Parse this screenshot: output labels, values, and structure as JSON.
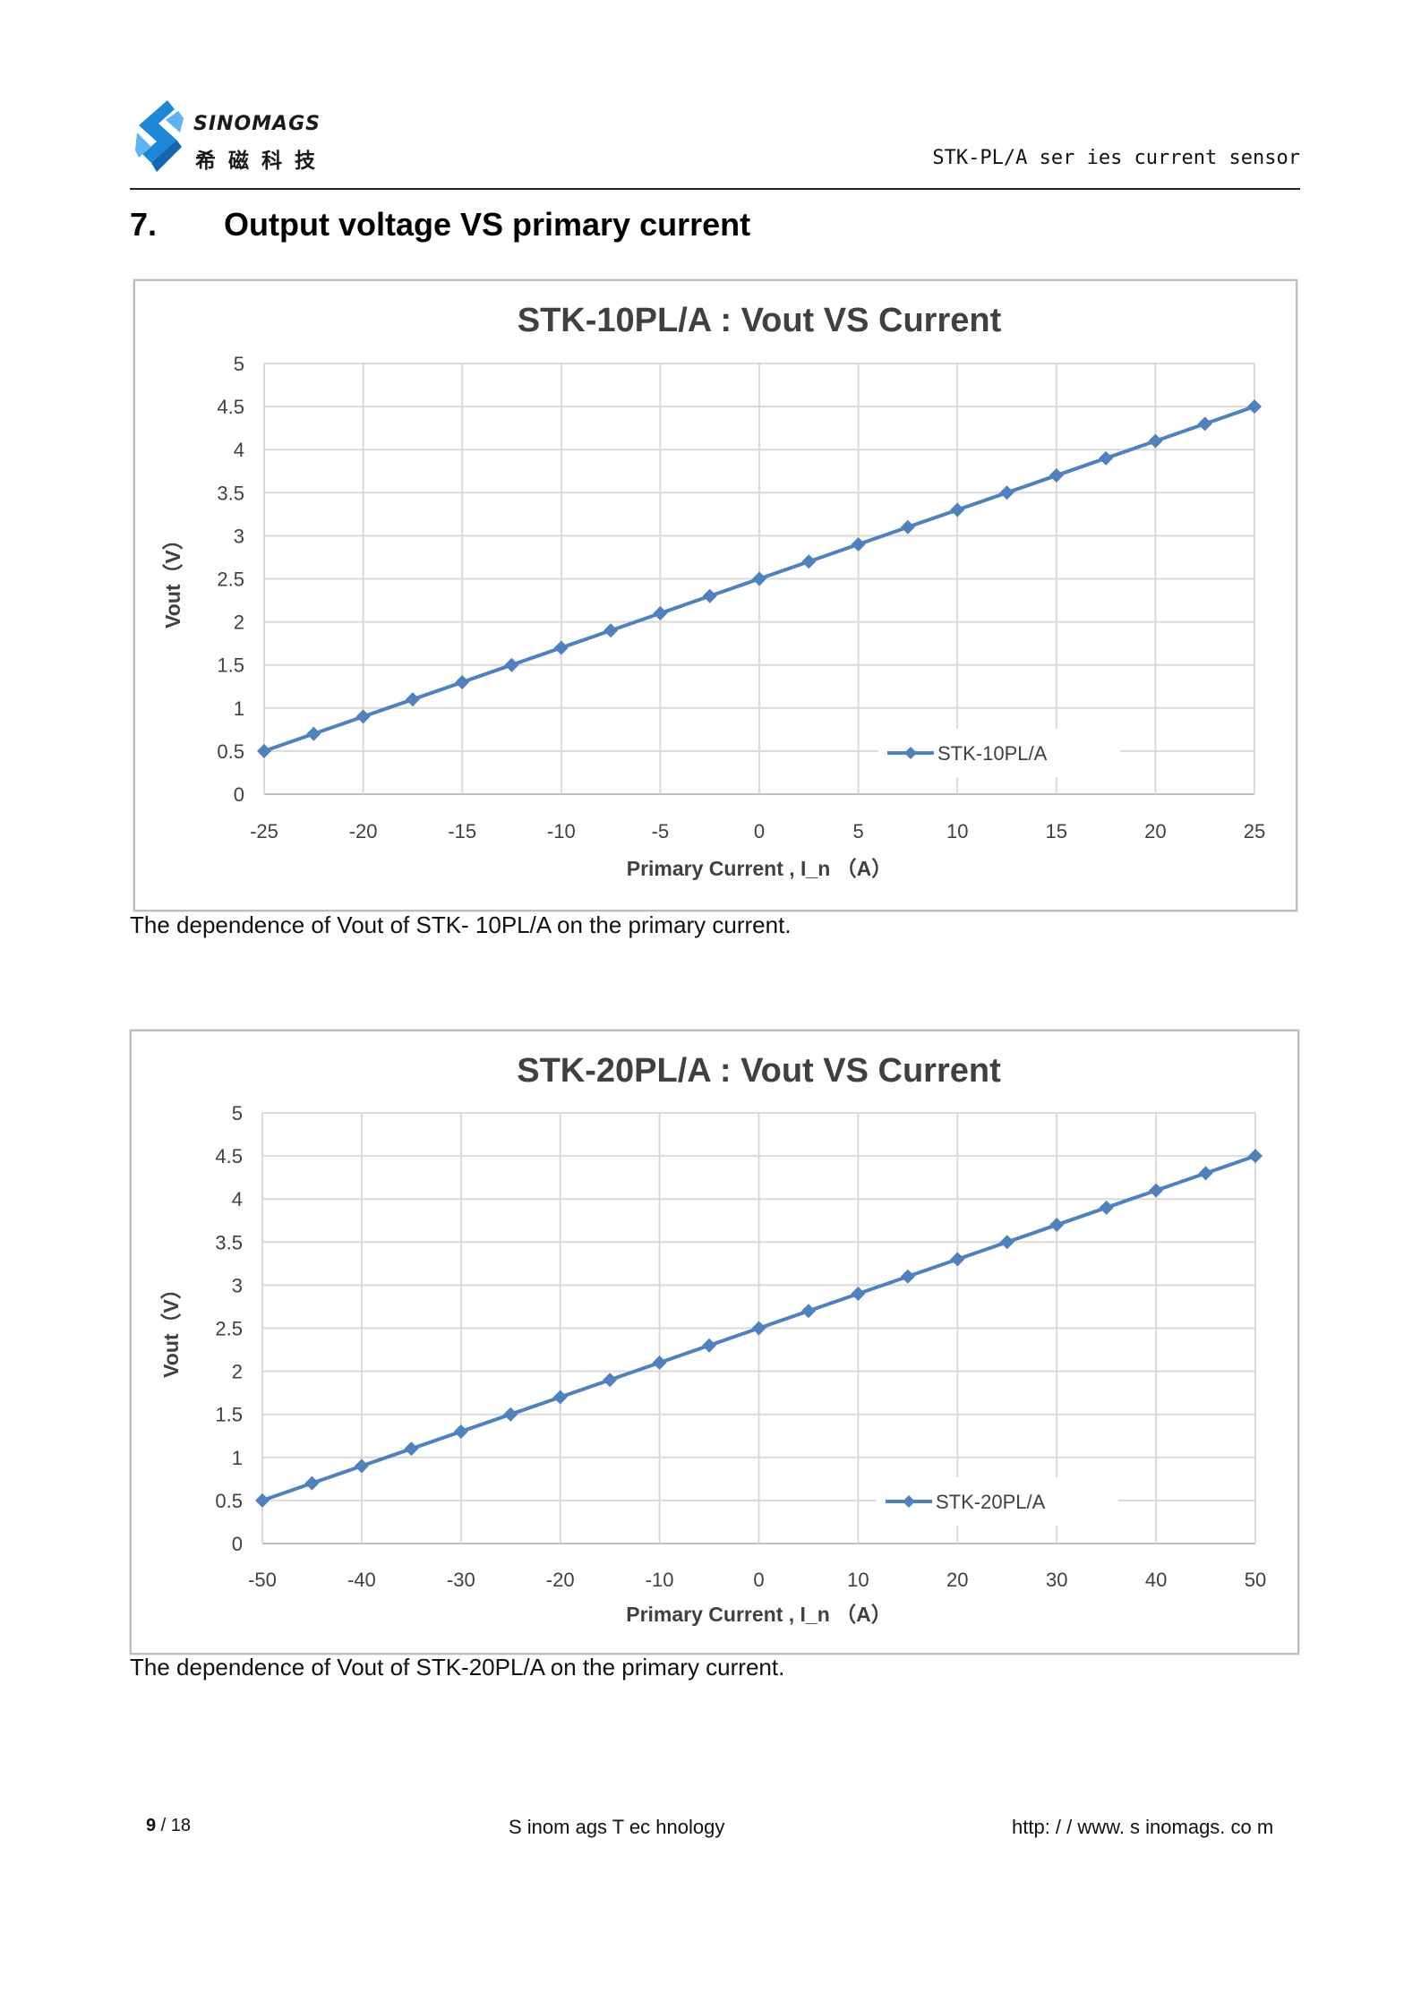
{
  "header": {
    "logo_en": "SINOMAGS",
    "logo_cn": "希磁科技",
    "series_text": "STK-PL/A ser ies current sensor"
  },
  "section": {
    "number": "7.",
    "title": "Output voltage VS primary current"
  },
  "colors": {
    "series": "#4f81bd",
    "grid": "#d9d9d9",
    "axis": "#bfbfbf",
    "logo_blue": "#1e88d8"
  },
  "charts": [
    {
      "type": "line",
      "title": "STK-10PL/A : Vout VS Current",
      "xlabel": "Primary Current , I_n （A）",
      "ylabel": "Vout（V）",
      "xlim": [
        -25,
        25
      ],
      "ylim": [
        0,
        5
      ],
      "xticks": [
        "-25",
        "-20",
        "-15",
        "-10",
        "-5",
        "0",
        "5",
        "10",
        "15",
        "20",
        "25"
      ],
      "yticks": [
        "0",
        "0.5",
        "1",
        "1.5",
        "2",
        "2.5",
        "3",
        "3.5",
        "4",
        "4.5",
        "5"
      ],
      "legend_position": "bottom-right",
      "grid": true,
      "series": [
        {
          "name": "STK-10PL/A",
          "marker": "diamond",
          "x": [
            -25,
            -22.5,
            -20,
            -17.5,
            -15,
            -12.5,
            -10,
            -7.5,
            -5,
            -2.5,
            0,
            2.5,
            5,
            7.5,
            10,
            12.5,
            15,
            17.5,
            20,
            22.5,
            25
          ],
          "y": [
            0.5,
            0.7,
            0.9,
            1.1,
            1.3,
            1.5,
            1.7,
            1.9,
            2.1,
            2.3,
            2.5,
            2.7,
            2.9,
            3.1,
            3.3,
            3.5,
            3.7,
            3.9,
            4.1,
            4.3,
            4.5
          ]
        }
      ],
      "caption": "The dependence of Vout of STK- 10PL/A on the primary current."
    },
    {
      "type": "line",
      "title": "STK-20PL/A : Vout VS Current",
      "xlabel": "Primary Current , I_n （A）",
      "ylabel": "Vout（V）",
      "xlim": [
        -50,
        50
      ],
      "ylim": [
        0,
        5
      ],
      "xticks": [
        "-50",
        "-40",
        "-30",
        "-20",
        "-10",
        "0",
        "10",
        "20",
        "30",
        "40",
        "50"
      ],
      "yticks": [
        "0",
        "0.5",
        "1",
        "1.5",
        "2",
        "2.5",
        "3",
        "3.5",
        "4",
        "4.5",
        "5"
      ],
      "legend_position": "bottom-right",
      "grid": true,
      "series": [
        {
          "name": "STK-20PL/A",
          "marker": "diamond",
          "x": [
            -50,
            -45,
            -40,
            -35,
            -30,
            -25,
            -20,
            -15,
            -10,
            -5,
            0,
            5,
            10,
            15,
            20,
            25,
            30,
            35,
            40,
            45,
            50
          ],
          "y": [
            0.5,
            0.7,
            0.9,
            1.1,
            1.3,
            1.5,
            1.7,
            1.9,
            2.1,
            2.3,
            2.5,
            2.7,
            2.9,
            3.1,
            3.3,
            3.5,
            3.7,
            3.9,
            4.1,
            4.3,
            4.5
          ]
        }
      ],
      "caption": "The dependence of Vout of STK-20PL/A on the primary current."
    }
  ],
  "footer": {
    "page_current": "9",
    "page_sep": " / ",
    "page_total": "18",
    "company": "S inom ags T ec hnology",
    "url": "http: / / www. s inomags. co m"
  }
}
